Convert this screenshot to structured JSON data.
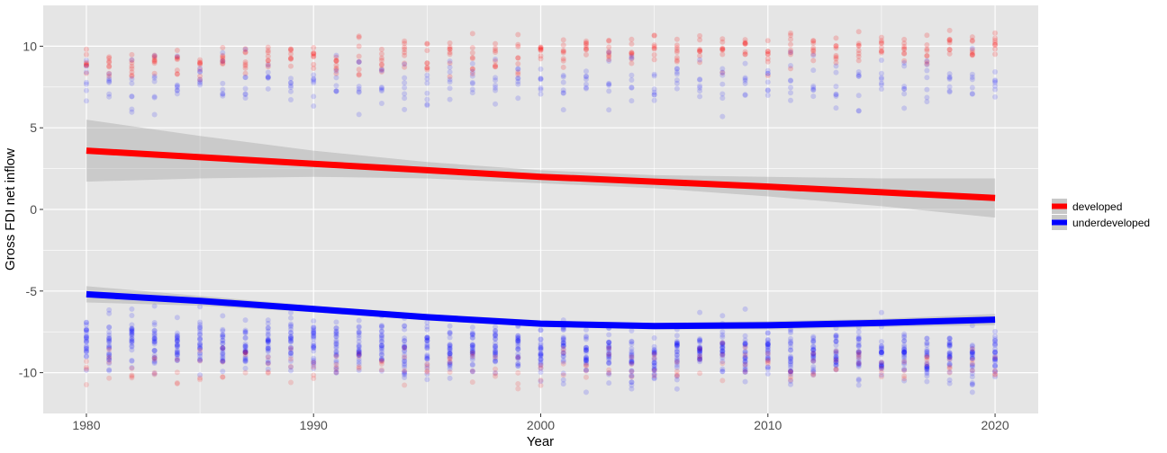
{
  "chart_data": {
    "type": "scatter",
    "xlabel": "Year",
    "ylabel": "Gross FDI net inflow",
    "xlim": [
      1978.1,
      1982.0
    ],
    "ylim": [
      -12.5,
      12.5
    ],
    "x_ticks": [
      1980,
      1990,
      2000,
      2010,
      2020
    ],
    "x_tick_labels": [
      "1980",
      "1990",
      "2000",
      "2010",
      "2020"
    ],
    "y_ticks": [
      -10,
      -5,
      0,
      5,
      10
    ],
    "y_tick_labels": [
      "-10",
      "-5",
      "0",
      "5",
      "10"
    ],
    "grid": true,
    "legend_position": "right",
    "background": "#e5e5e5",
    "series": [
      {
        "name": "developed",
        "color": "#ff0000",
        "points": "scatter cluster per year near y=8 to 11 and a smaller cluster near y=-8 to -11",
        "trend": {
          "x": [
            1980,
            1985,
            1990,
            1995,
            2000,
            2005,
            2010,
            2015,
            2020
          ],
          "y": [
            3.6,
            3.2,
            2.8,
            2.4,
            2.0,
            1.7,
            1.4,
            1.05,
            0.7
          ],
          "ci_lower": [
            1.7,
            1.9,
            2.0,
            1.9,
            1.6,
            1.3,
            0.8,
            0.2,
            -0.5
          ],
          "ci_upper": [
            5.5,
            4.5,
            3.6,
            2.9,
            2.4,
            2.1,
            2.0,
            1.9,
            1.9
          ]
        }
      },
      {
        "name": "underdeveloped",
        "color": "#0000ff",
        "points": "scatter cluster per year near y=-6 to -10 and a smaller cluster near y=6 to 10",
        "trend": {
          "x": [
            1980,
            1985,
            1990,
            1995,
            2000,
            2005,
            2010,
            2015,
            2020
          ],
          "y": [
            -5.2,
            -5.6,
            -6.1,
            -6.6,
            -7.0,
            -7.15,
            -7.1,
            -6.95,
            -6.75
          ],
          "ci_lower": [
            -5.7,
            -5.9,
            -6.3,
            -6.8,
            -7.2,
            -7.35,
            -7.35,
            -7.2,
            -7.1
          ],
          "ci_upper": [
            -4.7,
            -5.3,
            -5.9,
            -6.4,
            -6.8,
            -6.95,
            -6.85,
            -6.7,
            -6.4
          ]
        }
      }
    ]
  }
}
